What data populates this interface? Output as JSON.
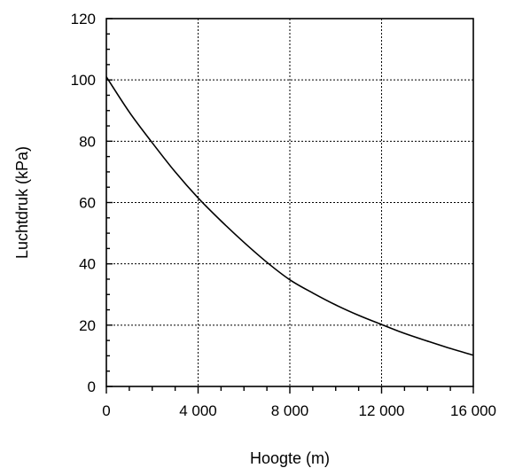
{
  "chart_data": {
    "type": "line",
    "xlabel": "Hoogte (m)",
    "ylabel": "Luchtdruk (kPa)",
    "xlim": [
      0,
      16000
    ],
    "ylim": [
      0,
      120
    ],
    "x_ticks": [
      0,
      4000,
      8000,
      12000,
      16000
    ],
    "x_tick_labels": [
      "0",
      "4 000",
      "8 000",
      "12 000",
      "16 000"
    ],
    "y_ticks": [
      0,
      20,
      40,
      60,
      80,
      100,
      120
    ],
    "y_tick_labels": [
      "0",
      "20",
      "40",
      "60",
      "80",
      "100",
      "120"
    ],
    "x_minor_step": 1000,
    "y_minor_step": 5,
    "grid": true,
    "series": [
      {
        "x": [
          0,
          1000,
          2000,
          3000,
          4000,
          5000,
          6000,
          7000,
          8000,
          9000,
          10000,
          11000,
          12000,
          13000,
          14000,
          15000,
          16000
        ],
        "y": [
          101,
          89.5,
          79.5,
          70,
          61.5,
          54,
          47,
          40.5,
          34.8,
          30.5,
          26.6,
          23.2,
          20.2,
          17.3,
          14.8,
          12.4,
          10.2
        ]
      }
    ]
  }
}
